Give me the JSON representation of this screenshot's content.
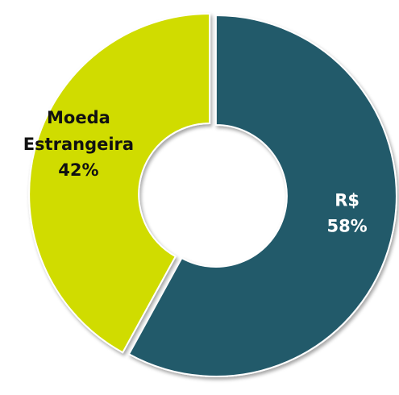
{
  "chart_data": {
    "type": "donut",
    "categories": [
      "R$",
      "Moeda Estrangeira"
    ],
    "values": [
      58,
      42
    ],
    "value_labels": [
      "58%",
      "42%"
    ],
    "colors": [
      "#245a6b",
      "#d0dc00"
    ],
    "label_colors": [
      "#ffffff",
      "#111111"
    ]
  }
}
